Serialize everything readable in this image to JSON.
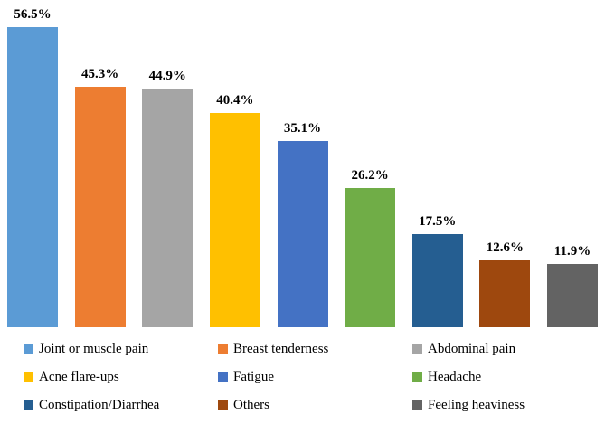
{
  "chart_data": {
    "type": "bar",
    "title": "",
    "xlabel": "",
    "ylabel": "",
    "ylim": [
      0,
      60
    ],
    "grid": false,
    "legend_position": "bottom",
    "categories": [
      "Joint or muscle pain",
      "Breast tenderness",
      "Abdominal pain",
      "Acne flare-ups",
      "Fatigue",
      "Headache",
      "Constipation/Diarrhea",
      "Others",
      "Feeling heaviness"
    ],
    "values": [
      56.5,
      45.3,
      44.9,
      40.4,
      35.1,
      26.2,
      17.5,
      12.6,
      11.9
    ],
    "data_labels": [
      "56.5%",
      "45.3%",
      "44.9%",
      "40.4%",
      "35.1%",
      "26.2%",
      "17.5%",
      "12.6%",
      "11.9%"
    ],
    "colors": [
      "#5B9BD5",
      "#ED7D31",
      "#A5A5A5",
      "#FFC000",
      "#4472C4",
      "#70AD47",
      "#255E91",
      "#9E480E",
      "#636363"
    ]
  }
}
